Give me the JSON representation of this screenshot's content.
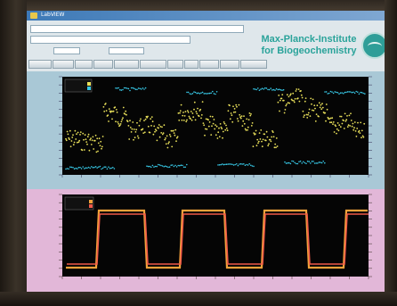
{
  "window": {
    "title": "LabVIEW"
  },
  "controls": {
    "path_field": "",
    "second_field": "",
    "field_a_label": "",
    "field_a_value": "",
    "field_b_label": "",
    "field_b_value": "",
    "tabs": [
      "",
      "",
      "",
      "",
      "",
      "",
      "",
      "",
      "",
      "",
      "",
      ""
    ]
  },
  "brand": {
    "line1": "Max-Planck-Institute",
    "line2": "for Biogeochemistry"
  },
  "colors": {
    "yellow_trace": "#e9e05a",
    "cyan_trace": "#37c7e5",
    "orange_trace": "#f2a23a",
    "red_trace": "#f05a4a",
    "plot_bg": "#050505"
  },
  "chart_data": [
    {
      "type": "scatter",
      "series": [
        {
          "values": []
        },
        {
          "values": []
        }
      ],
      "x_tick_labels": [],
      "y_tick_labels": [],
      "grid": false,
      "legend": "top-left"
    },
    {
      "type": "line",
      "series": [
        {
          "values": []
        },
        {
          "values": []
        }
      ],
      "x_tick_labels": [],
      "y_tick_labels": [],
      "grid": false,
      "legend": "top-left"
    }
  ]
}
